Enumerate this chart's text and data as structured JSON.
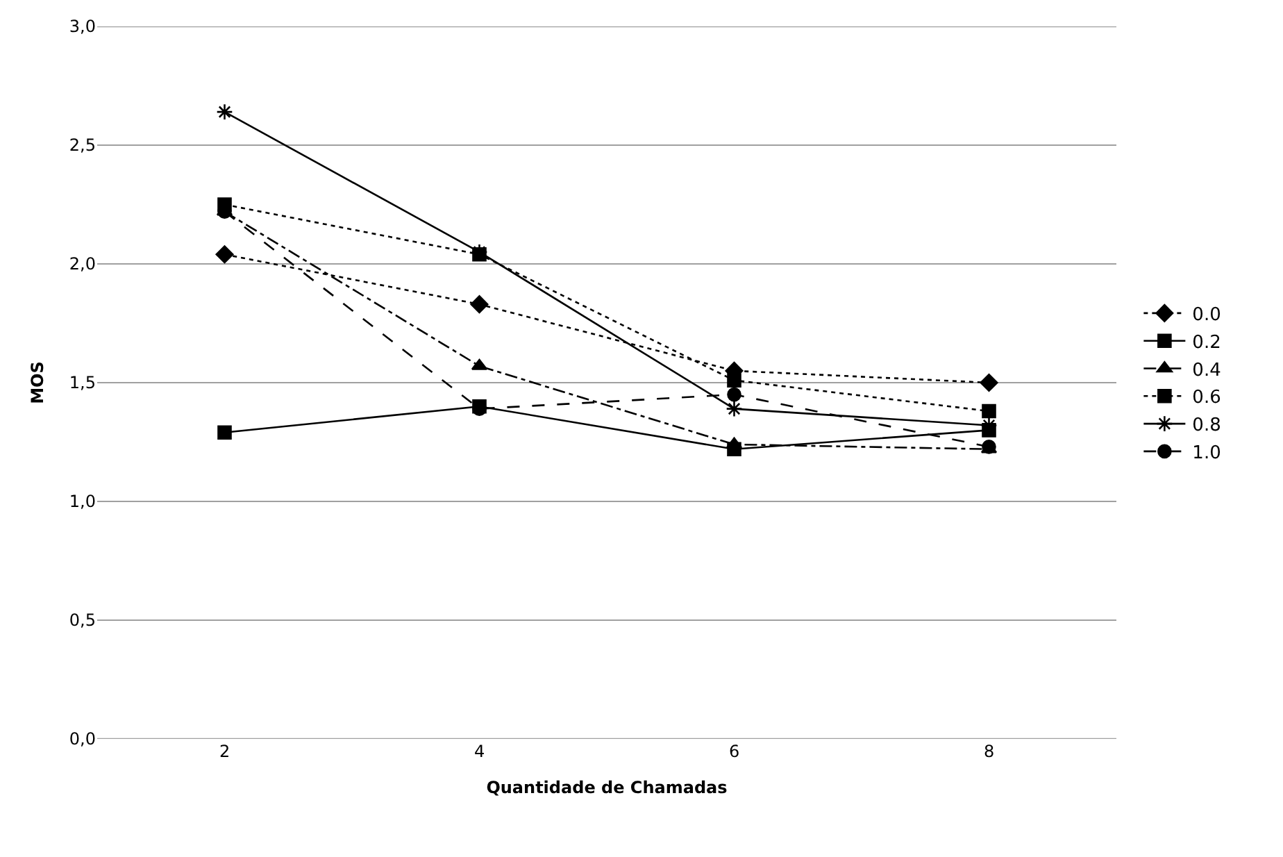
{
  "chart_data": {
    "type": "line",
    "xlabel": "Quantidade de Chamadas",
    "ylabel": "MOS",
    "categories": [
      "2",
      "4",
      "6",
      "8"
    ],
    "series": [
      {
        "name": "0.0",
        "color": "#000000",
        "values": [
          2.04,
          1.83,
          1.55,
          1.5
        ],
        "marker": "diamond",
        "line_style": "dotted"
      },
      {
        "name": "0.2",
        "color": "#000000",
        "values": [
          1.29,
          1.4,
          1.22,
          1.3
        ],
        "marker": "square",
        "line_style": "solid"
      },
      {
        "name": "0.4",
        "color": "#000000",
        "values": [
          2.22,
          1.57,
          1.24,
          1.22
        ],
        "marker": "triangle",
        "line_style": "dashdot"
      },
      {
        "name": "0.6",
        "color": "#000000",
        "values": [
          2.25,
          2.04,
          1.51,
          1.38
        ],
        "marker": "square",
        "line_style": "dotted"
      },
      {
        "name": "0.8",
        "color": "#000000",
        "values": [
          2.64,
          2.05,
          1.39,
          1.32
        ],
        "marker": "cross",
        "line_style": "solid"
      },
      {
        "name": "1.0",
        "color": "#000000",
        "values": [
          2.22,
          1.39,
          1.45,
          1.23
        ],
        "marker": "circle",
        "line_style": "dashed"
      }
    ],
    "ylim": [
      0,
      3
    ],
    "yticks": [
      {
        "value": 0,
        "label": "0,0"
      },
      {
        "value": 0.5,
        "label": "0,5"
      },
      {
        "value": 1,
        "label": "1,0"
      },
      {
        "value": 1.5,
        "label": "1,5"
      },
      {
        "value": 2,
        "label": "2,0"
      },
      {
        "value": 2.5,
        "label": "2,5"
      },
      {
        "value": 3,
        "label": "3,0"
      }
    ],
    "grid": "y",
    "legend": "right"
  }
}
